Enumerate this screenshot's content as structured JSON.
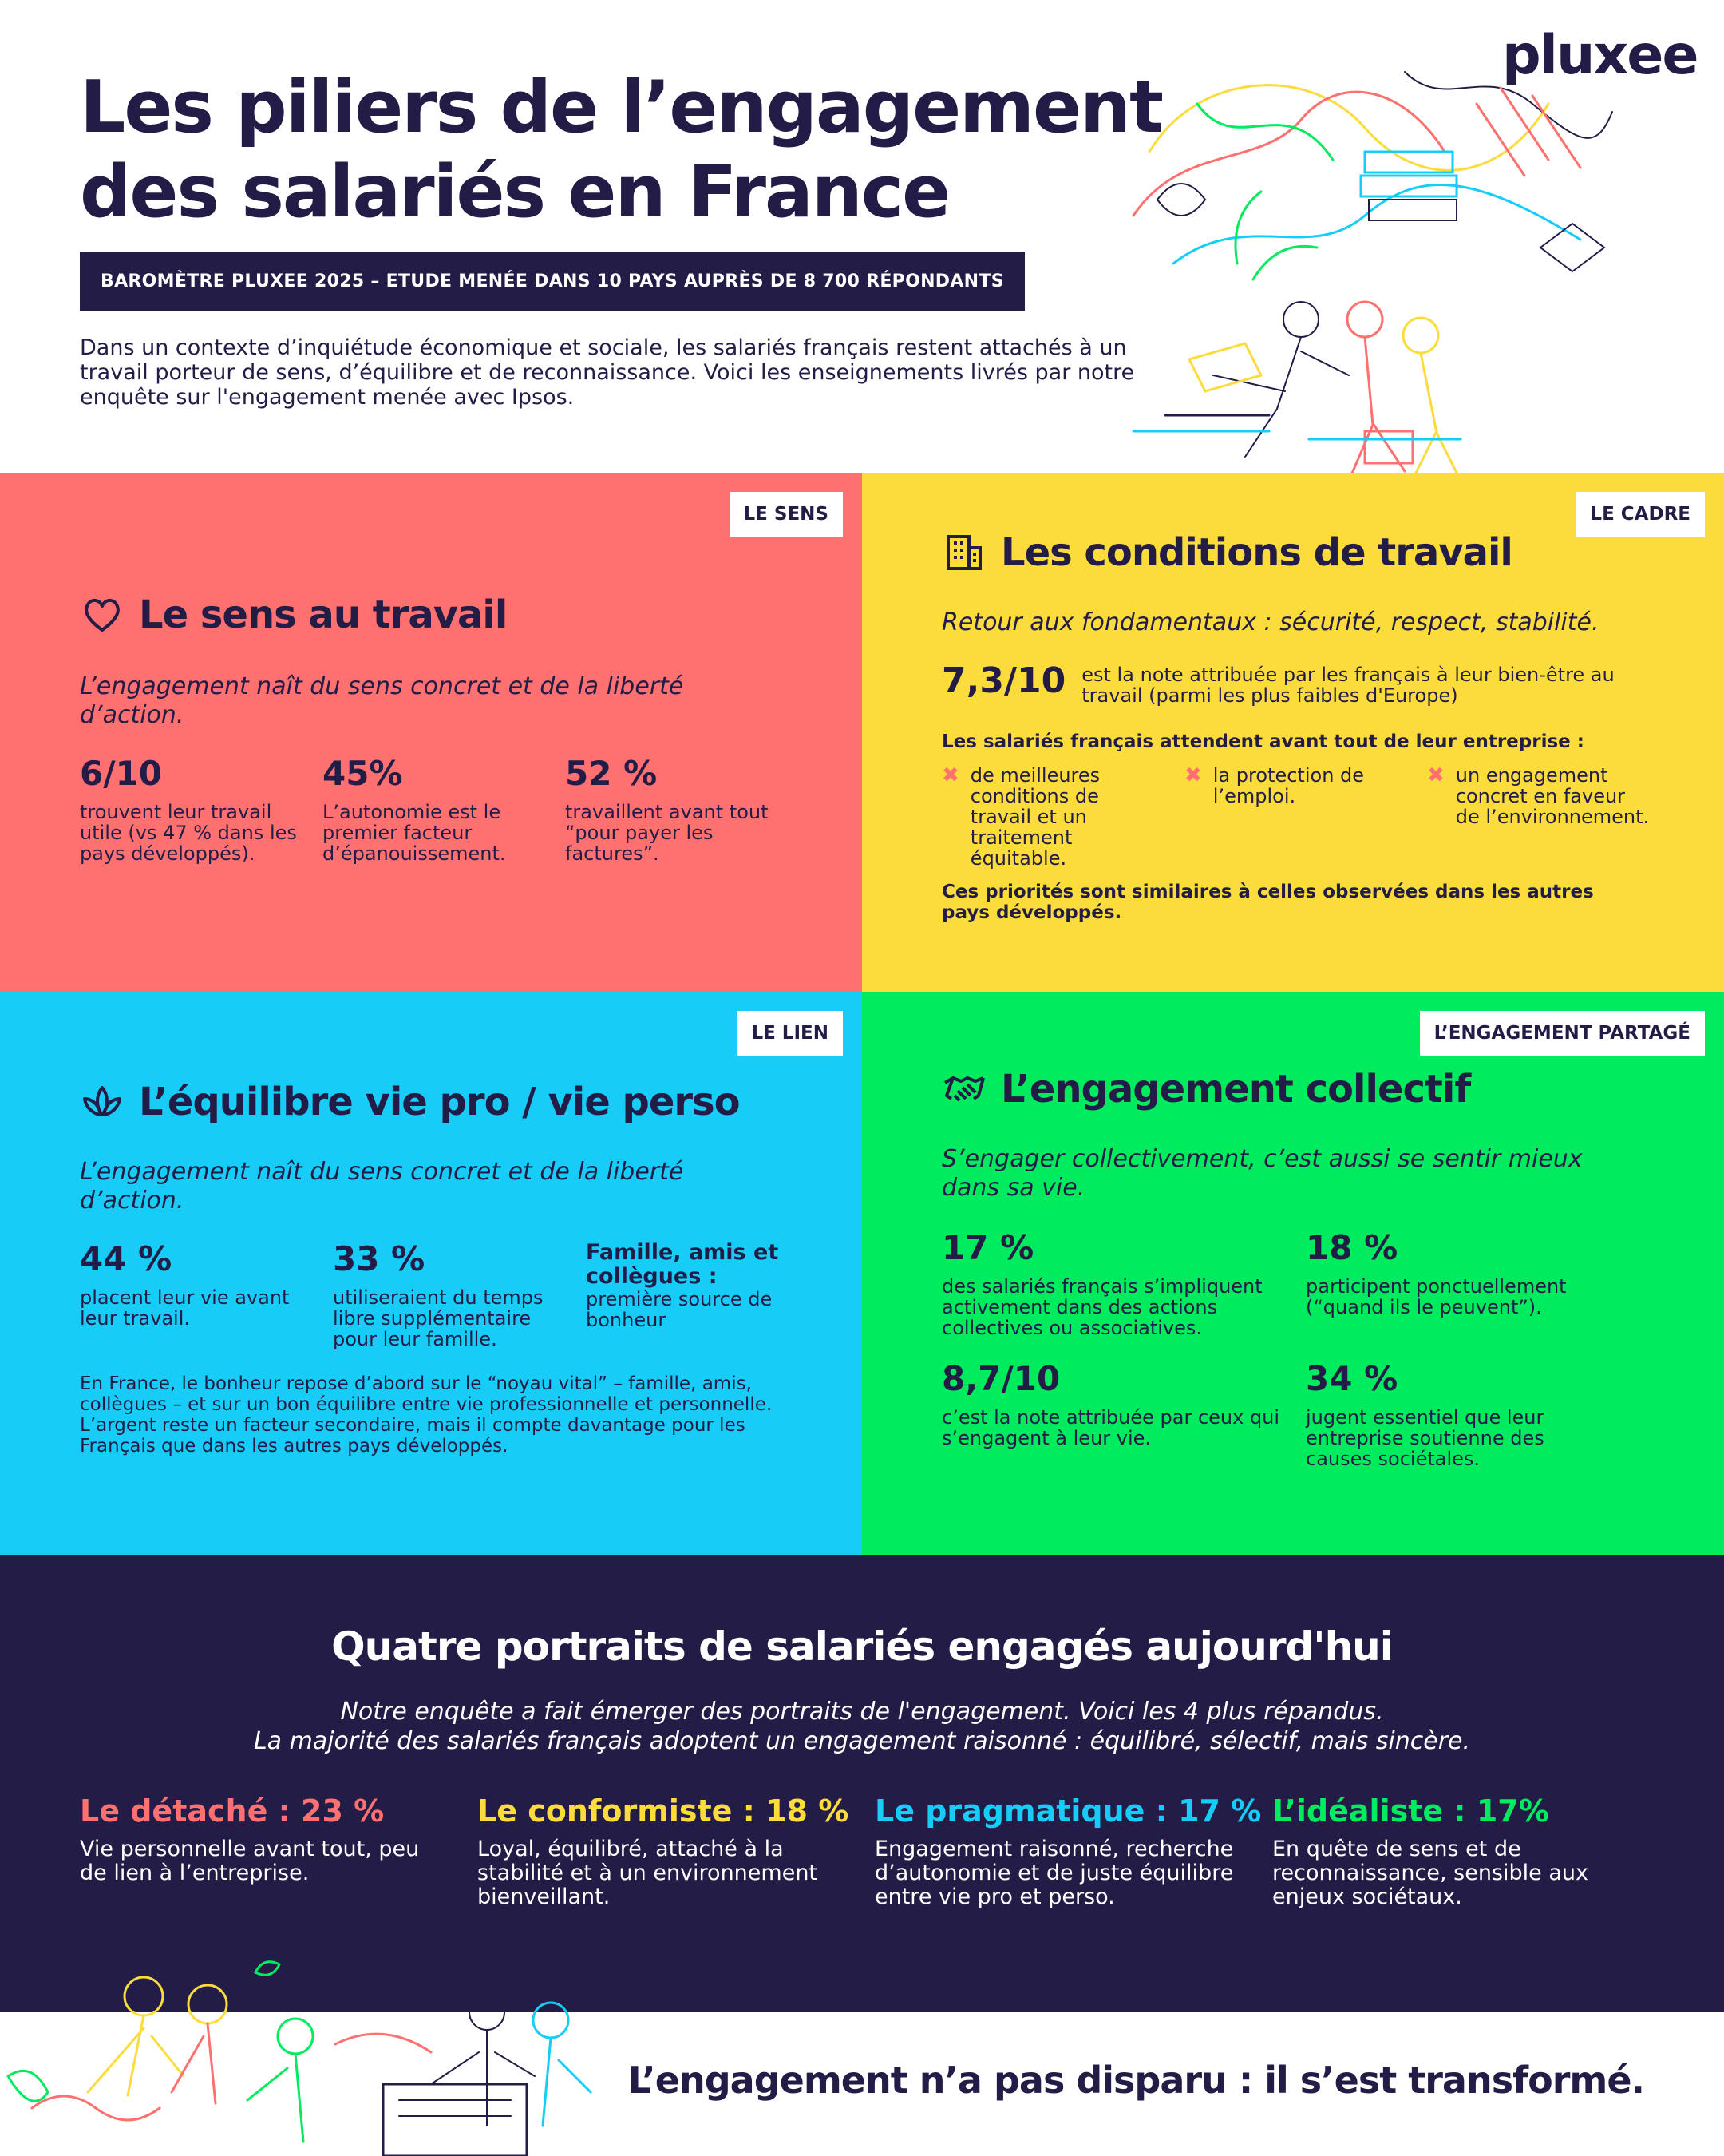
{
  "brand": {
    "logo": "pluxee",
    "navy": "#221c46",
    "coral": "#ff7170",
    "yellow": "#fcdc3b",
    "cyan": "#17cdf7",
    "green": "#00eb5e"
  },
  "header": {
    "title_line1": "Les piliers de l’engagement",
    "title_line2": "des salariés en France",
    "banner": "BAROMÈTRE PLUXEE 2025 – ETUDE MENÉE DANS 10 PAYS AUPRÈS DE 8 700 RÉPONDANTS",
    "intro": "Dans un contexte d’inquiétude économique et sociale, les salariés français restent attachés à un travail porteur de sens, d’équilibre et de reconnaissance. Voici les enseignements livrés par notre enquête sur l'engagement menée avec Ipsos."
  },
  "sens": {
    "tag": "LE SENS",
    "icon": "heart-icon",
    "title": "Le sens au travail",
    "lead": "L’engagement naît du sens concret et de la liberté d’action.",
    "stats": [
      {
        "num": "6/10",
        "txt": "trouvent leur travail utile (vs 47 % dans les pays développés)."
      },
      {
        "num": "45%",
        "txt": "L’autonomie est le premier facteur d’épanouissement."
      },
      {
        "num": "52 %",
        "txt": "travaillent avant tout “pour payer les factures”."
      }
    ]
  },
  "cadre": {
    "tag": "LE CADRE",
    "icon": "building-icon",
    "title": "Les conditions de travail",
    "lead": "Retour aux fondamentaux : sécurité, respect, stabilité.",
    "score": "7,3/10",
    "score_txt": "est la note attribuée par les français à leur bien-être au travail (parmi les plus faibles d'Europe)",
    "expect_head": "Les salariés français attendent avant tout de leur entreprise :",
    "expectations": [
      "de meilleures conditions de travail et un traitement équitable.",
      "la protection de l’emploi.",
      "un engagement concret en faveur de l’environnement."
    ],
    "note": "Ces priorités sont similaires à celles observées dans les autres pays développés."
  },
  "lien": {
    "tag": "LE LIEN",
    "icon": "lotus-icon",
    "title": "L’équilibre vie pro / vie perso",
    "lead": "L’engagement naît du sens concret et de la liberté d’action.",
    "stats": [
      {
        "num": "44 %",
        "txt": "placent leur vie avant leur travail."
      },
      {
        "num": "33 %",
        "txt": "utiliseraient du temps libre supplémentaire pour leur famille."
      }
    ],
    "family_head": "Famille, amis et collègues :",
    "family_txt": "première source de bonheur",
    "note": "En France, le bonheur repose d’abord sur le “noyau vital” – famille, amis, collègues – et sur un bon équilibre entre vie professionnelle et personnelle. L’argent reste un facteur secondaire, mais il compte davantage pour les Français que dans les autres pays développés."
  },
  "engagement": {
    "tag": "L’ENGAGEMENT PARTAGÉ",
    "icon": "handshake-icon",
    "title": "L’engagement collectif",
    "lead": "S’engager collectivement, c’est aussi se sentir mieux dans sa vie.",
    "stats": [
      {
        "num": "17 %",
        "txt": "des salariés français s’impliquent activement dans des actions collectives ou associatives."
      },
      {
        "num": "18 %",
        "txt": "participent ponctuellement (“quand ils le peuvent”)."
      },
      {
        "num": "8,7/10",
        "txt": "c’est la note attribuée par ceux qui s’engagent à leur vie."
      },
      {
        "num": "34 %",
        "txt": "jugent essentiel que leur entreprise soutienne des causes sociétales."
      }
    ]
  },
  "portraits": {
    "title": "Quatre portraits de salariés engagés aujourd'hui",
    "sub1": "Notre enquête a fait émerger des portraits de l'engagement. Voici les 4 plus répandus.",
    "sub2": "La majorité des salariés français adoptent un engagement raisonné : équilibré, sélectif, mais sincère.",
    "items": [
      {
        "name": "Le détaché : 23 %",
        "color": "#ff7170",
        "desc": "Vie personnelle avant tout, peu de lien à l’entreprise."
      },
      {
        "name": "Le conformiste : 18 %",
        "color": "#fcdc3b",
        "desc": "Loyal, équilibré, attaché à la stabilité et à un environnement bienveillant."
      },
      {
        "name": "Le pragmatique : 17 %",
        "color": "#17cdf7",
        "desc": "Engagement raisonné, recherche d’autonomie et de juste équilibre entre vie pro et perso."
      },
      {
        "name": "L’idéaliste : 17%",
        "color": "#00eb5e",
        "desc": "En quête de sens et de reconnaissance, sensible aux enjeux sociétaux."
      }
    ]
  },
  "footer": {
    "text": "L’engagement n’a pas disparu : il s’est transformé."
  }
}
